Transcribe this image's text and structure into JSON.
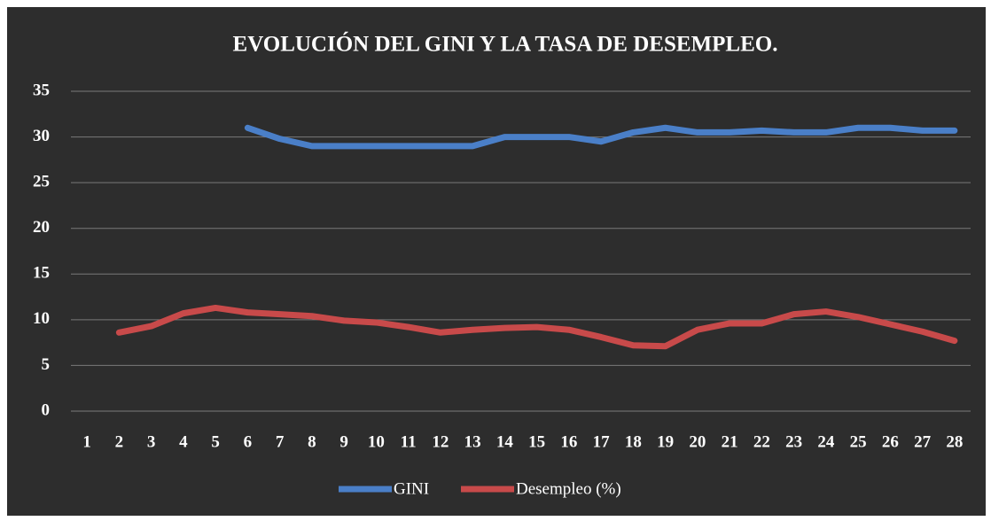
{
  "chart_data": {
    "type": "line",
    "title": "EVOLUCIÓN DEL GINI Y LA TASA DE DESEMPLEO.",
    "categories": [
      1,
      2,
      3,
      4,
      5,
      6,
      7,
      8,
      9,
      10,
      11,
      12,
      13,
      14,
      15,
      16,
      17,
      18,
      19,
      20,
      21,
      22,
      23,
      24,
      25,
      26,
      27,
      28
    ],
    "series": [
      {
        "name": "GINI",
        "color": "#4a7fc8",
        "values": [
          null,
          null,
          null,
          null,
          null,
          31,
          29.8,
          29,
          29,
          29,
          29,
          29,
          29,
          30,
          30,
          30,
          29.5,
          30.5,
          31,
          30.5,
          30.5,
          30.7,
          30.5,
          30.5,
          31,
          31,
          30.7,
          30.7
        ]
      },
      {
        "name": "Desempleo (%)",
        "color": "#c84a4a",
        "values": [
          null,
          8.6,
          9.3,
          10.7,
          11.3,
          10.8,
          10.6,
          10.4,
          9.9,
          9.7,
          9.2,
          8.6,
          8.9,
          9.1,
          9.2,
          8.9,
          8.1,
          7.2,
          7.1,
          8.9,
          9.6,
          9.6,
          10.6,
          10.9,
          10.3,
          9.5,
          8.7,
          7.7
        ]
      }
    ],
    "ylim": [
      0,
      35
    ],
    "yticks": [
      0,
      5,
      10,
      15,
      20,
      25,
      30,
      35
    ],
    "grid": true,
    "legend": "bottom"
  }
}
